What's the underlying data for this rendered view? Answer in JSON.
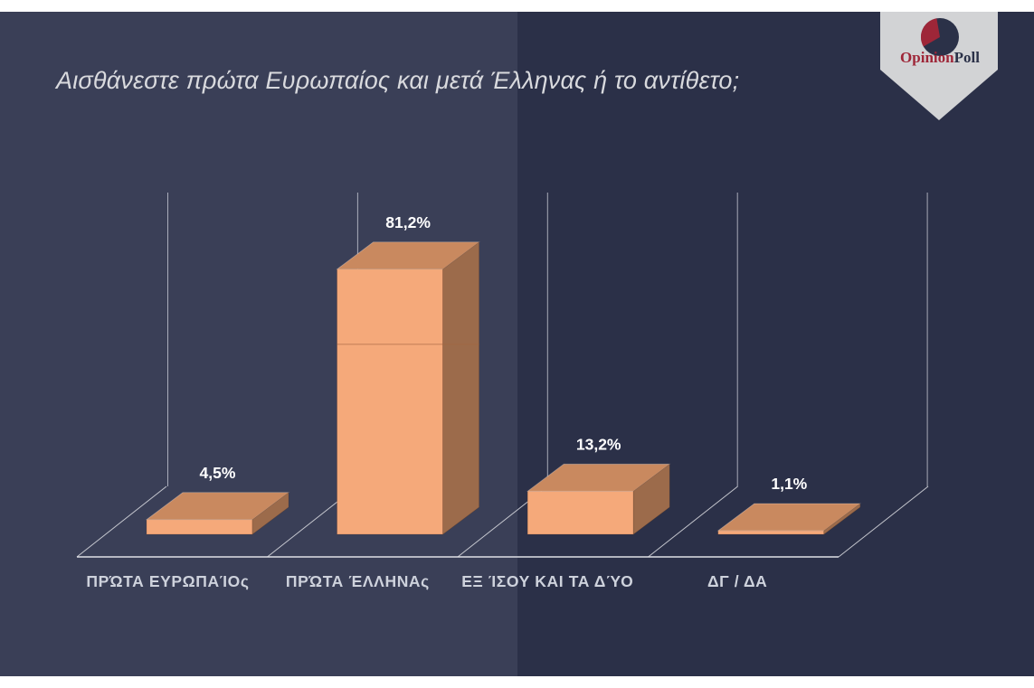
{
  "header": {
    "title": "Αισθάνεστε πρώτα Ευρωπαίος και μετά Έλληνας ή το αντίθετο;"
  },
  "logo": {
    "icon": "pie-chart-icon",
    "name_part1": "Opinion",
    "name_part2": "Poll",
    "badge_color": "#d2d3d5",
    "red": "#9e2638",
    "navy": "#2b3148"
  },
  "slide": {
    "background_left": "#3a3f57",
    "background_right": "#2b3048",
    "title_color": "#d9dade"
  },
  "chart_data": {
    "type": "bar",
    "projection": "3d",
    "title": "Αισθάνεστε πρώτα Ευρωπαίος και μετά Έλληνας ή το αντίθετο;",
    "categories": [
      "ΠΡΏΤΑ ΕΥΡΩΠΑΊΟς",
      "ΠΡΏΤΑ ΈΛΛΗΝΑς",
      "ΕΞ ΊΣΟΥ ΚΑΙ ΤΑ ΔΎΟ",
      "ΔΓ / ΔΑ"
    ],
    "values": [
      4.5,
      81.2,
      13.2,
      1.1
    ],
    "value_labels": [
      "4,5%",
      "81,2%",
      "13,2%",
      "1,1%"
    ],
    "xlabel": "",
    "ylabel": "",
    "ylim": [
      0,
      90
    ],
    "grid": "vertical-wall-lines-only",
    "legend": "none",
    "seam_lines": [
      {
        "category_index": 1,
        "value": 58.2
      }
    ],
    "colors": {
      "bar_front": "#f5a97a",
      "bar_top": "#c9895f",
      "bar_side": "#9c6b4b",
      "seam": "#a06540",
      "wall_gridline": "#c6c9d4",
      "floor_line": "#dfe0e5",
      "value_label": "#ffffff",
      "category_label": "#ced2dc"
    }
  }
}
